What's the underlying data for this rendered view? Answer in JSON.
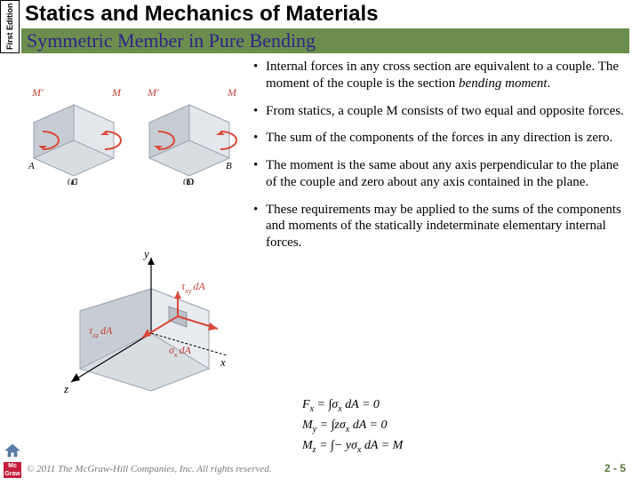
{
  "edition": "First\nEdition",
  "book_title": "Statics and Mechanics of Materials",
  "section_title": "Symmetric Member in Pure Bending",
  "bullets": [
    {
      "pre": "Internal forces in any cross section are equivalent to a couple.  The moment of the couple is the section ",
      "em": "bending moment",
      "post": "."
    },
    {
      "pre": "From statics, a couple M consists of two equal and opposite forces.",
      "em": "",
      "post": ""
    },
    {
      "pre": "The sum of the components of the forces in any direction is zero.",
      "em": "",
      "post": ""
    },
    {
      "pre": "The moment is the same about any axis perpendicular to the plane of the couple and zero about any axis contained in the plane.",
      "em": "",
      "post": ""
    },
    {
      "pre": "These requirements may be applied to the sums of the components and moments of the statically indeterminate elementary internal forces.",
      "em": "",
      "post": ""
    }
  ],
  "equations": {
    "fx": {
      "lhs": "F",
      "sub": "x",
      "rhs": " = ∫σ",
      "sub2": "x",
      "tail": " dA = 0"
    },
    "my": {
      "lhs": "M",
      "sub": "y",
      "rhs": " = ∫zσ",
      "sub2": "x",
      "tail": " dA = 0"
    },
    "mz": {
      "lhs": "M",
      "sub": "z",
      "rhs": " = ∫− yσ",
      "sub2": "x",
      "tail": " dA = M"
    }
  },
  "figure1": {
    "labels": {
      "Mp": "M'",
      "M": "M",
      "A": "A",
      "B": "B",
      "C": "C",
      "D": "D",
      "a": "(a)",
      "b": "(b)"
    },
    "colors": {
      "block": "#d8dde2",
      "arrow": "#d9483b",
      "edge": "#9aa3ad"
    }
  },
  "figure2": {
    "labels": {
      "y": "y",
      "z": "z",
      "x": "x",
      "txy": "τ",
      "txy_sub": "xy",
      "txz": "τ",
      "txz_sub": "xz",
      "sx": "σ",
      "sx_sub": "x",
      "dA": "dA"
    },
    "colors": {
      "block": "#d8dde2",
      "arrow": "#d9483b",
      "axis": "#000000"
    }
  },
  "copyright": "© 2011 The McGraw-Hill Companies, Inc. All rights reserved.",
  "pagenum": "2 - 5",
  "logo": "Mc\nGraw\nHill",
  "colors": {
    "section_bar": "#6b8e4e",
    "section_title": "#2e2585",
    "pagenum": "#5a7a3a",
    "logo_bg": "#c41e3a"
  }
}
